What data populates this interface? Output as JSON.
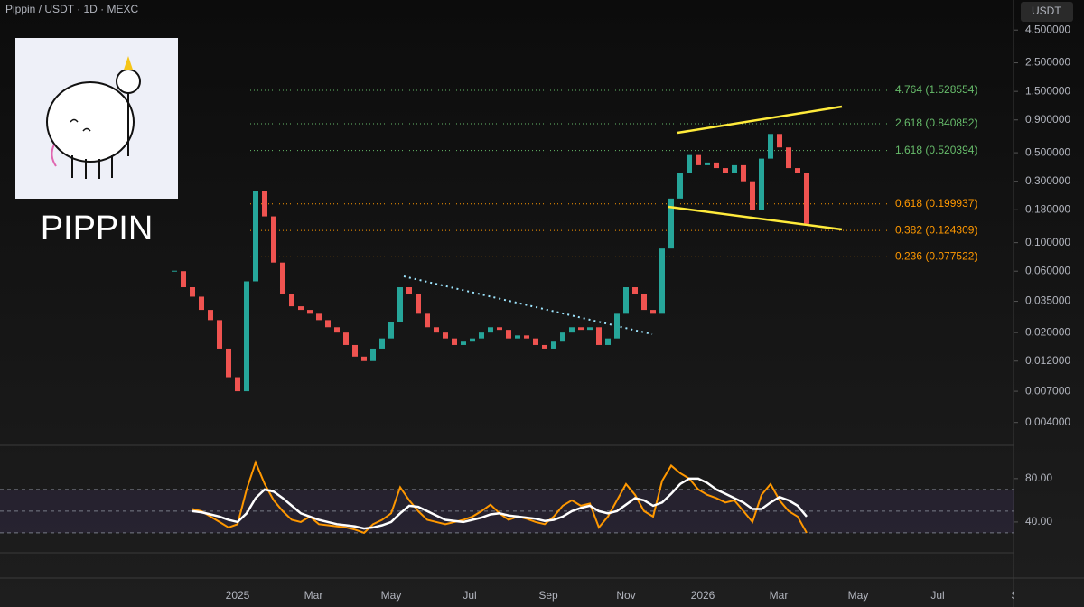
{
  "header": {
    "title": "Pippin / USDT · 1D · MEXC",
    "currency": "USDT"
  },
  "logo": {
    "text": "PIPPIN"
  },
  "chart_data": {
    "type": "candlestick",
    "close": [
      0.06,
      0.045,
      0.038,
      0.03,
      0.025,
      0.015,
      0.009,
      0.007,
      0.05,
      0.25,
      0.16,
      0.07,
      0.04,
      0.032,
      0.03,
      0.028,
      0.025,
      0.022,
      0.02,
      0.016,
      0.013,
      0.012,
      0.015,
      0.018,
      0.024,
      0.045,
      0.04,
      0.028,
      0.022,
      0.02,
      0.018,
      0.016,
      0.017,
      0.018,
      0.02,
      0.022,
      0.021,
      0.018,
      0.019,
      0.018,
      0.016,
      0.015,
      0.017,
      0.02,
      0.022,
      0.021,
      0.022,
      0.016,
      0.018,
      0.028,
      0.045,
      0.04,
      0.03,
      0.028,
      0.09,
      0.22,
      0.35,
      0.48,
      0.4,
      0.42,
      0.38,
      0.35,
      0.4,
      0.3,
      0.18,
      0.45,
      0.7,
      0.55,
      0.38,
      0.35,
      0.14
    ],
    "up_color": "#26a69a",
    "down_color": "#ef5350",
    "ylim": [
      0.0027,
      7.7
    ],
    "log": true,
    "yticks": [
      {
        "value": 4.5,
        "label": "4.500000"
      },
      {
        "value": 2.5,
        "label": "2.500000"
      },
      {
        "value": 1.5,
        "label": "1.500000"
      },
      {
        "value": 0.9,
        "label": "0.900000"
      },
      {
        "value": 0.5,
        "label": "0.500000"
      },
      {
        "value": 0.3,
        "label": "0.300000"
      },
      {
        "value": 0.18,
        "label": "0.180000"
      },
      {
        "value": 0.1,
        "label": "0.100000"
      },
      {
        "value": 0.06,
        "label": "0.060000"
      },
      {
        "value": 0.035,
        "label": "0.035000"
      },
      {
        "value": 0.02,
        "label": "0.020000"
      },
      {
        "value": 0.012,
        "label": "0.012000"
      },
      {
        "value": 0.007,
        "label": "0.007000"
      },
      {
        "value": 0.004,
        "label": "0.004000"
      }
    ],
    "levels": [
      {
        "label": "4.764 (1.528554)",
        "value": 1.528554,
        "color": "#66bb6a"
      },
      {
        "label": "2.618 (0.840852)",
        "value": 0.840852,
        "color": "#66bb6a"
      },
      {
        "label": "1.618 (0.520394)",
        "value": 0.520394,
        "color": "#66bb6a"
      },
      {
        "label": "0.618 (0.199937)",
        "value": 0.199937,
        "color": "#ff9800"
      },
      {
        "label": "0.382 (0.124309)",
        "value": 0.124309,
        "color": "#ff9800"
      },
      {
        "label": "0.236 (0.077522)",
        "value": 0.077522,
        "color": "#ff9800"
      }
    ],
    "x_labels": [
      "2025",
      "Mar",
      "May",
      "Jul",
      "Sep",
      "Nov",
      "2026",
      "Mar",
      "May",
      "Jul",
      "Sep"
    ],
    "rsi": {
      "type": "line",
      "color": "#ff9800",
      "ma_color": "#ffffff",
      "values": [
        null,
        null,
        52,
        50,
        45,
        40,
        35,
        38,
        70,
        95,
        75,
        60,
        50,
        42,
        40,
        45,
        38,
        37,
        36,
        35,
        33,
        30,
        38,
        42,
        48,
        72,
        60,
        50,
        42,
        40,
        38,
        40,
        42,
        45,
        50,
        56,
        48,
        42,
        45,
        43,
        40,
        38,
        45,
        55,
        60,
        55,
        57,
        35,
        45,
        60,
        75,
        65,
        50,
        45,
        78,
        92,
        85,
        80,
        70,
        65,
        62,
        58,
        60,
        50,
        40,
        65,
        75,
        60,
        50,
        45,
        30
      ],
      "ma": [
        null,
        null,
        50,
        49,
        47,
        45,
        42,
        40,
        48,
        62,
        70,
        68,
        62,
        55,
        48,
        45,
        42,
        40,
        38,
        37,
        36,
        34,
        35,
        37,
        40,
        48,
        55,
        54,
        50,
        46,
        42,
        41,
        40,
        42,
        44,
        47,
        48,
        46,
        45,
        44,
        43,
        41,
        42,
        45,
        50,
        53,
        55,
        50,
        48,
        50,
        56,
        62,
        60,
        55,
        58,
        66,
        75,
        80,
        80,
        76,
        70,
        66,
        62,
        58,
        52,
        52,
        58,
        63,
        60,
        55,
        45
      ],
      "ylim": [
        13.3,
        109
      ],
      "yticks": [
        {
          "value": 80,
          "label": "80.00"
        },
        {
          "value": 40,
          "label": "40.00"
        }
      ],
      "bands": [
        30,
        50,
        70
      ]
    }
  }
}
